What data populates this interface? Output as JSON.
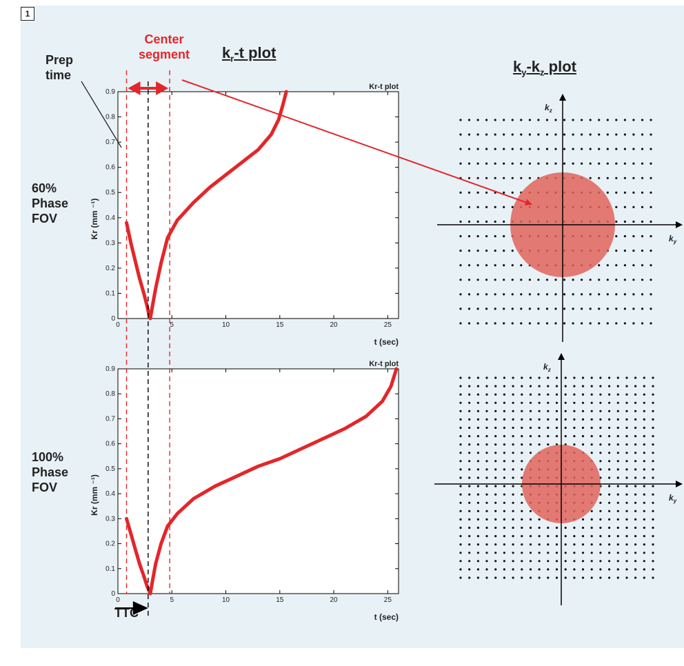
{
  "figure_number": "1",
  "labels": {
    "center_segment_1": "Center",
    "center_segment_2": "segment",
    "prep_1": "Prep",
    "prep_2": "time",
    "fov60_1": "60%",
    "fov60_2": "Phase",
    "fov60_3": "FOV",
    "fov100_1": "100%",
    "fov100_2": "Phase",
    "fov100_3": "FOV",
    "ttc": "TTC"
  },
  "titles": {
    "kr_t": {
      "main": "k",
      "sub": "r",
      "rest": "-t plot"
    },
    "ky_kz": {
      "k1": "k",
      "sub1": "y",
      "dash": "-k",
      "sub2": "z",
      "rest": " plot"
    }
  },
  "colors": {
    "curve": "#e3262a",
    "circle": "#e0645c",
    "panel_bg": "#e8f1f6"
  },
  "chart_data": [
    {
      "type": "line",
      "title": "Kr-t plot",
      "xlabel": "t (sec)",
      "ylabel": "Kr (mm ⁻¹)",
      "xlim": [
        0,
        26
      ],
      "ylim": [
        0,
        0.9
      ],
      "xticks": [
        0,
        5,
        10,
        15,
        20,
        25
      ],
      "yticks": [
        0,
        0.1,
        0.2,
        0.3,
        0.4,
        0.5,
        0.6,
        0.7,
        0.8,
        0.9
      ],
      "series": [
        {
          "x": [
            0.8,
            1.2,
            1.6,
            2.0,
            2.4,
            2.7,
            2.9,
            3.0,
            3.2,
            3.5,
            4.0,
            4.6,
            5.5,
            7.0,
            8.5,
            10.0,
            11.5,
            13.0,
            14.2,
            14.9,
            15.3,
            15.6
          ],
          "y": [
            0.38,
            0.3,
            0.23,
            0.16,
            0.1,
            0.05,
            0.01,
            0.0,
            0.05,
            0.12,
            0.22,
            0.32,
            0.39,
            0.46,
            0.52,
            0.57,
            0.62,
            0.67,
            0.73,
            0.79,
            0.85,
            0.9
          ]
        }
      ],
      "annotations": {
        "center_segment_x": [
          0.8,
          4.8
        ],
        "center_x": 2.8
      }
    },
    {
      "type": "line",
      "title": "Kr-t plot",
      "xlabel": "t (sec)",
      "ylabel": "Kr (mm ⁻¹)",
      "xlim": [
        0,
        26
      ],
      "ylim": [
        0,
        0.9
      ],
      "xticks": [
        0,
        5,
        10,
        15,
        20,
        25
      ],
      "yticks": [
        0,
        0.1,
        0.2,
        0.3,
        0.4,
        0.5,
        0.6,
        0.7,
        0.8,
        0.9
      ],
      "series": [
        {
          "x": [
            0.8,
            1.2,
            1.6,
            2.0,
            2.4,
            2.7,
            2.9,
            3.0,
            3.2,
            3.5,
            4.0,
            4.6,
            5.5,
            7.0,
            9.0,
            11.0,
            13.0,
            15.0,
            17.0,
            19.0,
            21.0,
            23.0,
            24.5,
            25.3,
            25.8
          ],
          "y": [
            0.3,
            0.24,
            0.18,
            0.12,
            0.07,
            0.03,
            0.01,
            0.0,
            0.05,
            0.12,
            0.2,
            0.27,
            0.32,
            0.38,
            0.43,
            0.47,
            0.51,
            0.54,
            0.58,
            0.62,
            0.66,
            0.71,
            0.77,
            0.83,
            0.9
          ]
        }
      ],
      "annotations": {
        "center_segment_x": [
          0.8,
          4.8
        ],
        "center_x": 2.8
      }
    },
    {
      "type": "scatter",
      "title": "",
      "xlabel": "k_y",
      "ylabel": "k_z",
      "grid": {
        "cols": 23,
        "rows": 15
      },
      "circle_radius_fraction": 0.5
    },
    {
      "type": "scatter",
      "title": "",
      "xlabel": "k_y",
      "ylabel": "k_z",
      "grid": {
        "cols": 23,
        "rows": 25
      },
      "circle_radius_fraction": 0.3
    }
  ]
}
